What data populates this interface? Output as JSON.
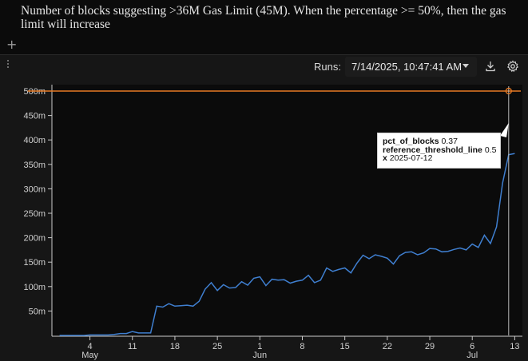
{
  "description": "Number of blocks suggesting >36M Gas Limit (45M). When the percentage >= 50%, then the gas limit will increase",
  "add_icon": "plus-icon",
  "toolbar": {
    "runs_label": "Runs:",
    "runs_value": "7/14/2025, 10:47:41 AM",
    "download_icon": "download-icon",
    "settings_icon": "gear-icon"
  },
  "tooltip": {
    "rows": [
      {
        "key": "pct_of_blocks",
        "value": "0.37"
      },
      {
        "key": "reference_threshold_line",
        "value": "0.5"
      },
      {
        "key": "x",
        "value": "2025-07-12"
      }
    ]
  },
  "colors": {
    "series_line": "#3f7fd0",
    "reference_line": "#e87a24",
    "axis": "#c8c8c8",
    "background": "#0b0b0b"
  },
  "chart_data": {
    "type": "line",
    "x_range": [
      "2025-04-28",
      "2025-07-14"
    ],
    "ylim": [
      0,
      0.5
    ],
    "y_ticks": [
      {
        "v": 0.05,
        "label": "50m"
      },
      {
        "v": 0.1,
        "label": "100m"
      },
      {
        "v": 0.15,
        "label": "150m"
      },
      {
        "v": 0.2,
        "label": "200m"
      },
      {
        "v": 0.25,
        "label": "250m"
      },
      {
        "v": 0.3,
        "label": "300m"
      },
      {
        "v": 0.35,
        "label": "350m"
      },
      {
        "v": 0.4,
        "label": "400m"
      },
      {
        "v": 0.45,
        "label": "450m"
      },
      {
        "v": 0.5,
        "label": "500m"
      }
    ],
    "x_ticks": [
      {
        "date": "2025-05-04",
        "label": "4",
        "sub": "May"
      },
      {
        "date": "2025-05-11",
        "label": "11",
        "sub": ""
      },
      {
        "date": "2025-05-18",
        "label": "18",
        "sub": ""
      },
      {
        "date": "2025-05-25",
        "label": "25",
        "sub": ""
      },
      {
        "date": "2025-06-01",
        "label": "1",
        "sub": "Jun"
      },
      {
        "date": "2025-06-08",
        "label": "8",
        "sub": ""
      },
      {
        "date": "2025-06-15",
        "label": "15",
        "sub": ""
      },
      {
        "date": "2025-06-22",
        "label": "22",
        "sub": ""
      },
      {
        "date": "2025-06-29",
        "label": "29",
        "sub": ""
      },
      {
        "date": "2025-07-06",
        "label": "6",
        "sub": "Jul"
      },
      {
        "date": "2025-07-13",
        "label": "13",
        "sub": ""
      }
    ],
    "hover_date": "2025-07-12",
    "series": [
      {
        "name": "pct_of_blocks",
        "points": [
          [
            "2025-04-29",
            0.0
          ],
          [
            "2025-04-30",
            0.0
          ],
          [
            "2025-05-01",
            0.0
          ],
          [
            "2025-05-02",
            0.0
          ],
          [
            "2025-05-03",
            0.0
          ],
          [
            "2025-05-04",
            0.001
          ],
          [
            "2025-05-05",
            0.001
          ],
          [
            "2025-05-06",
            0.001
          ],
          [
            "2025-05-07",
            0.001
          ],
          [
            "2025-05-08",
            0.002
          ],
          [
            "2025-05-09",
            0.004
          ],
          [
            "2025-05-10",
            0.004
          ],
          [
            "2025-05-11",
            0.008
          ],
          [
            "2025-05-12",
            0.005
          ],
          [
            "2025-05-13",
            0.005
          ],
          [
            "2025-05-14",
            0.005
          ],
          [
            "2025-05-15",
            0.06
          ],
          [
            "2025-05-16",
            0.058
          ],
          [
            "2025-05-17",
            0.065
          ],
          [
            "2025-05-18",
            0.06
          ],
          [
            "2025-05-19",
            0.061
          ],
          [
            "2025-05-20",
            0.062
          ],
          [
            "2025-05-21",
            0.06
          ],
          [
            "2025-05-22",
            0.07
          ],
          [
            "2025-05-23",
            0.095
          ],
          [
            "2025-05-24",
            0.108
          ],
          [
            "2025-05-25",
            0.092
          ],
          [
            "2025-05-26",
            0.104
          ],
          [
            "2025-05-27",
            0.097
          ],
          [
            "2025-05-28",
            0.098
          ],
          [
            "2025-05-29",
            0.11
          ],
          [
            "2025-05-30",
            0.103
          ],
          [
            "2025-05-31",
            0.117
          ],
          [
            "2025-06-01",
            0.12
          ],
          [
            "2025-06-02",
            0.102
          ],
          [
            "2025-06-03",
            0.115
          ],
          [
            "2025-06-04",
            0.113
          ],
          [
            "2025-06-05",
            0.114
          ],
          [
            "2025-06-06",
            0.107
          ],
          [
            "2025-06-07",
            0.111
          ],
          [
            "2025-06-08",
            0.113
          ],
          [
            "2025-06-09",
            0.123
          ],
          [
            "2025-06-10",
            0.108
          ],
          [
            "2025-06-11",
            0.113
          ],
          [
            "2025-06-12",
            0.138
          ],
          [
            "2025-06-13",
            0.131
          ],
          [
            "2025-06-14",
            0.135
          ],
          [
            "2025-06-15",
            0.138
          ],
          [
            "2025-06-16",
            0.128
          ],
          [
            "2025-06-17",
            0.148
          ],
          [
            "2025-06-18",
            0.164
          ],
          [
            "2025-06-19",
            0.157
          ],
          [
            "2025-06-20",
            0.165
          ],
          [
            "2025-06-21",
            0.162
          ],
          [
            "2025-06-22",
            0.158
          ],
          [
            "2025-06-23",
            0.146
          ],
          [
            "2025-06-24",
            0.163
          ],
          [
            "2025-06-25",
            0.17
          ],
          [
            "2025-06-26",
            0.171
          ],
          [
            "2025-06-27",
            0.165
          ],
          [
            "2025-06-28",
            0.169
          ],
          [
            "2025-06-29",
            0.178
          ],
          [
            "2025-06-30",
            0.177
          ],
          [
            "2025-07-01",
            0.171
          ],
          [
            "2025-07-02",
            0.172
          ],
          [
            "2025-07-03",
            0.176
          ],
          [
            "2025-07-04",
            0.179
          ],
          [
            "2025-07-05",
            0.175
          ],
          [
            "2025-07-06",
            0.187
          ],
          [
            "2025-07-07",
            0.18
          ],
          [
            "2025-07-08",
            0.205
          ],
          [
            "2025-07-09",
            0.188
          ],
          [
            "2025-07-10",
            0.222
          ],
          [
            "2025-07-11",
            0.312
          ],
          [
            "2025-07-12",
            0.37
          ],
          [
            "2025-07-13",
            0.372
          ]
        ]
      },
      {
        "name": "reference_threshold_line",
        "points": [
          [
            "2025-04-29",
            0.5
          ],
          [
            "2025-07-13",
            0.5
          ]
        ]
      }
    ]
  }
}
